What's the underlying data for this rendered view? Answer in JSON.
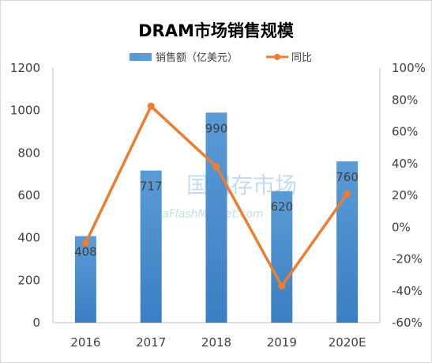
{
  "title": "DRAM市场销售规模",
  "watermark": {
    "main": "国闪存市场",
    "sub": "inaFlashMarket.com"
  },
  "colors": {
    "bar": "#5b9bd5",
    "bar_dark": "#3a7fc4",
    "line": "#ed7d31",
    "axis": "#bfbfbf",
    "grid": "#d9d9d9"
  },
  "chart_data": {
    "type": "bar",
    "title": "DRAM市场销售规模",
    "categories": [
      "2016",
      "2017",
      "2018",
      "2019",
      "2020E"
    ],
    "series": [
      {
        "name": "销售额（亿美元）",
        "type": "bar",
        "axis": "left",
        "values": [
          408,
          717,
          990,
          620,
          760
        ],
        "labels": [
          "408",
          "717",
          "990",
          "620",
          "760"
        ]
      },
      {
        "name": "同比",
        "type": "line",
        "axis": "right",
        "values": [
          -10,
          76,
          38,
          -37,
          21
        ]
      }
    ],
    "y_left": {
      "lim": [
        0,
        1200
      ],
      "ticks": [
        "0",
        "200",
        "400",
        "600",
        "800",
        "1000",
        "1200"
      ]
    },
    "y_right": {
      "lim": [
        -60,
        100
      ],
      "ticks": [
        "-60%",
        "-40%",
        "-20%",
        "0%",
        "20%",
        "40%",
        "60%",
        "80%",
        "100%"
      ]
    },
    "legend_position": "top",
    "grid": false
  }
}
